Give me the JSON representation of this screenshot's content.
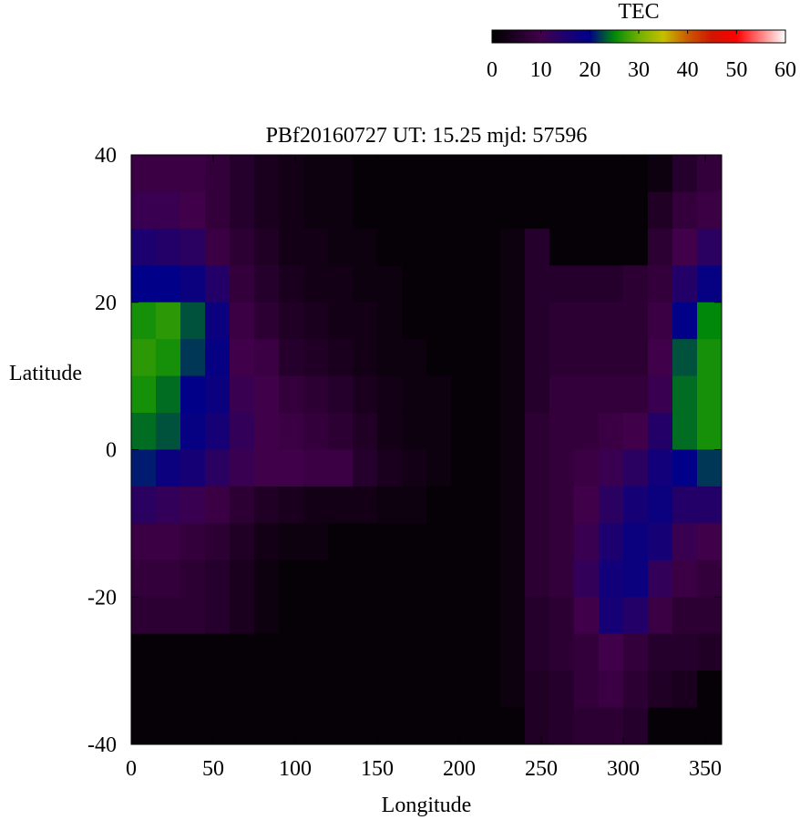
{
  "chart_data": {
    "type": "heatmap",
    "title": "PBf20160727  UT: 15.25  mjd: 57596",
    "xlabel": "Longitude",
    "ylabel": "Latitude",
    "xlim": [
      0,
      360
    ],
    "ylim": [
      -40,
      40
    ],
    "xticks": [
      "0",
      "50",
      "100",
      "150",
      "200",
      "250",
      "300",
      "350"
    ],
    "yticks": [
      "40",
      "20",
      "0",
      "-20",
      "-40"
    ],
    "grid": false,
    "colorbar": {
      "label": "TEC",
      "range": [
        0,
        60
      ],
      "ticks": [
        "0",
        "10",
        "20",
        "30",
        "40",
        "50",
        "60"
      ],
      "placement": "top-right",
      "stops": [
        {
          "v": 0,
          "c": "#000000"
        },
        {
          "v": 10,
          "c": "#40004a"
        },
        {
          "v": 15,
          "c": "#1c0070"
        },
        {
          "v": 20,
          "c": "#000088"
        },
        {
          "v": 25,
          "c": "#00880a"
        },
        {
          "v": 30,
          "c": "#70b000"
        },
        {
          "v": 35,
          "c": "#c4c000"
        },
        {
          "v": 40,
          "c": "#cc5a00"
        },
        {
          "v": 45,
          "c": "#d01500"
        },
        {
          "v": 50,
          "c": "#ff0000"
        },
        {
          "v": 60,
          "c": "#ffffff"
        }
      ]
    },
    "lon_centers": [
      7.5,
      22.5,
      37.5,
      52.5,
      67.5,
      82.5,
      97.5,
      112.5,
      127.5,
      142.5,
      157.5,
      172.5,
      187.5,
      202.5,
      217.5,
      232.5,
      247.5,
      262.5,
      277.5,
      292.5,
      307.5,
      322.5,
      337.5,
      352.5
    ],
    "lat_centers": [
      37.5,
      32.5,
      27.5,
      22.5,
      17.5,
      12.5,
      7.5,
      2.5,
      -2.5,
      -7.5,
      -12.5,
      -17.5,
      -22.5,
      -27.5,
      -32.5,
      -37.5
    ],
    "cell_size_deg": [
      15,
      5
    ],
    "values": [
      [
        9,
        9,
        9,
        8,
        6,
        4,
        3,
        2,
        2,
        1,
        1,
        1,
        1,
        1,
        1,
        1,
        1,
        1,
        1,
        1,
        1,
        2,
        6,
        8
      ],
      [
        11,
        11,
        10,
        8,
        6,
        4,
        3,
        2,
        2,
        1,
        1,
        1,
        1,
        1,
        1,
        1,
        1,
        1,
        1,
        1,
        1,
        5,
        8,
        9
      ],
      [
        15,
        14,
        13,
        9,
        7,
        5,
        3,
        3,
        2,
        2,
        1,
        1,
        1,
        1,
        1,
        2,
        6,
        1,
        1,
        1,
        1,
        7,
        10,
        13
      ],
      [
        20,
        20,
        18,
        14,
        8,
        6,
        4,
        3,
        3,
        2,
        2,
        1,
        1,
        1,
        1,
        2,
        6,
        6,
        6,
        6,
        7,
        8,
        14,
        19
      ],
      [
        26,
        27,
        23,
        18,
        9,
        7,
        5,
        4,
        3,
        3,
        2,
        1,
        1,
        1,
        1,
        2,
        6,
        7,
        7,
        7,
        7,
        9,
        20,
        25
      ],
      [
        27,
        26,
        22,
        19,
        10,
        9,
        6,
        5,
        4,
        3,
        2,
        2,
        1,
        1,
        1,
        2,
        6,
        7,
        7,
        7,
        7,
        10,
        23,
        26
      ],
      [
        26,
        24,
        20,
        18,
        11,
        10,
        8,
        7,
        6,
        4,
        3,
        2,
        2,
        1,
        1,
        2,
        6,
        8,
        8,
        8,
        8,
        11,
        24,
        26
      ],
      [
        24,
        23,
        19,
        16,
        12,
        10,
        9,
        8,
        7,
        5,
        3,
        2,
        2,
        1,
        1,
        2,
        7,
        8,
        8,
        9,
        10,
        14,
        24,
        26
      ],
      [
        21,
        18,
        16,
        13,
        11,
        10,
        10,
        9,
        9,
        6,
        4,
        3,
        2,
        1,
        1,
        2,
        7,
        8,
        9,
        11,
        13,
        17,
        20,
        22
      ],
      [
        13,
        12,
        11,
        9,
        7,
        5,
        4,
        3,
        3,
        3,
        2,
        2,
        1,
        1,
        1,
        2,
        7,
        8,
        10,
        13,
        16,
        18,
        14,
        14
      ],
      [
        9,
        9,
        8,
        7,
        5,
        3,
        2,
        2,
        1,
        1,
        1,
        1,
        1,
        1,
        1,
        2,
        7,
        8,
        11,
        15,
        18,
        16,
        11,
        10
      ],
      [
        8,
        8,
        7,
        6,
        4,
        2,
        1,
        1,
        1,
        1,
        1,
        1,
        1,
        1,
        1,
        2,
        7,
        8,
        12,
        17,
        18,
        12,
        9,
        8
      ],
      [
        7,
        7,
        7,
        6,
        4,
        2,
        1,
        1,
        1,
        1,
        1,
        1,
        1,
        1,
        1,
        2,
        6,
        7,
        10,
        16,
        14,
        9,
        7,
        7
      ],
      [
        1,
        1,
        1,
        1,
        1,
        1,
        1,
        1,
        1,
        1,
        1,
        1,
        1,
        1,
        1,
        2,
        6,
        7,
        8,
        10,
        8,
        6,
        6,
        5
      ],
      [
        1,
        1,
        1,
        1,
        1,
        1,
        1,
        1,
        1,
        1,
        1,
        1,
        1,
        1,
        1,
        2,
        5,
        6,
        8,
        9,
        7,
        5,
        4,
        1
      ],
      [
        1,
        1,
        1,
        1,
        1,
        1,
        1,
        1,
        1,
        1,
        1,
        1,
        1,
        1,
        1,
        1,
        5,
        6,
        7,
        7,
        6,
        1,
        1,
        1
      ]
    ]
  }
}
